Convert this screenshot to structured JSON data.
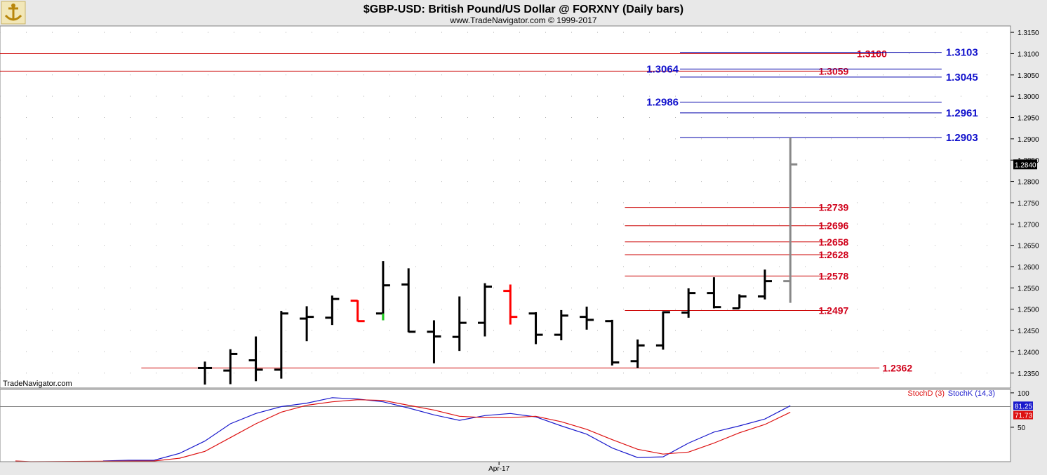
{
  "header": {
    "title": "$GBP-USD:  British Pound/US Dollar @ FORXNY  (Daily bars)",
    "subtitle": "www.TradeNavigator.com © 1999-2017",
    "watermark": "TradeNavigator.com",
    "logo_icon": "anchor-logo-icon"
  },
  "colors": {
    "bar": "#000000",
    "bar_down": "#ff0000",
    "bar_green": "#22cc22",
    "bar_current": "#888888",
    "red_line": "#cc0000",
    "blue_line": "#0000aa",
    "stoch_k": "#1a1acc",
    "stoch_d": "#dd1111",
    "panel_bg": "#ffffff",
    "frame_bg": "#e8e8e8"
  },
  "chart_data": [
    {
      "type": "bar",
      "subtype": "ohlc",
      "title": "$GBP-USD:  British Pound/US Dollar @ FORXNY  (Daily bars)",
      "ylim": [
        1.2315,
        1.3165
      ],
      "yticks": [
        "1.3150",
        "1.3100",
        "1.3050",
        "1.3000",
        "1.2950",
        "1.2900",
        "1.2850",
        "1.2800",
        "1.2750",
        "1.2700",
        "1.2650",
        "1.2600",
        "1.2550",
        "1.2500",
        "1.2450",
        "1.2400",
        "1.2350"
      ],
      "ytick_values": [
        1.315,
        1.31,
        1.305,
        1.3,
        1.295,
        1.29,
        1.285,
        1.28,
        1.275,
        1.27,
        1.265,
        1.26,
        1.255,
        1.25,
        1.245,
        1.24,
        1.235
      ],
      "x_label": "Apr-17",
      "x_label_index": 19,
      "n_slots": 42,
      "last_price": "1.2840",
      "bars": [
        {
          "i": 7,
          "o": 1.2362,
          "h": 1.2377,
          "l": 1.2323,
          "c": 1.2362,
          "color": "bar"
        },
        {
          "i": 8,
          "o": 1.2356,
          "h": 1.2406,
          "l": 1.2324,
          "c": 1.2395,
          "color": "bar"
        },
        {
          "i": 9,
          "o": 1.238,
          "h": 1.2436,
          "l": 1.2331,
          "c": 1.2358,
          "color": "bar"
        },
        {
          "i": 10,
          "o": 1.2358,
          "h": 1.2496,
          "l": 1.2337,
          "c": 1.249,
          "color": "bar"
        },
        {
          "i": 11,
          "o": 1.2478,
          "h": 1.2507,
          "l": 1.2425,
          "c": 1.2482,
          "color": "bar"
        },
        {
          "i": 12,
          "o": 1.248,
          "h": 1.2532,
          "l": 1.2463,
          "c": 1.2524,
          "color": "bar"
        },
        {
          "i": 13,
          "o": 1.252,
          "h": 1.2521,
          "l": 1.2471,
          "c": 1.2472,
          "color": "bar_down"
        },
        {
          "i": 14,
          "o": 1.249,
          "h": 1.2613,
          "l": 1.2474,
          "c": 1.2556,
          "color": "bar",
          "low_tail": "bar_green"
        },
        {
          "i": 15,
          "o": 1.2558,
          "h": 1.2596,
          "l": 1.2446,
          "c": 1.2447,
          "color": "bar"
        },
        {
          "i": 16,
          "o": 1.2447,
          "h": 1.2474,
          "l": 1.2373,
          "c": 1.2436,
          "color": "bar"
        },
        {
          "i": 17,
          "o": 1.2435,
          "h": 1.253,
          "l": 1.2402,
          "c": 1.2468,
          "color": "bar"
        },
        {
          "i": 18,
          "o": 1.2468,
          "h": 1.2561,
          "l": 1.2436,
          "c": 1.2553,
          "color": "bar"
        },
        {
          "i": 19,
          "o": 1.2543,
          "h": 1.2558,
          "l": 1.2464,
          "c": 1.2482,
          "color": "bar_down"
        },
        {
          "i": 20,
          "o": 1.249,
          "h": 1.2493,
          "l": 1.2418,
          "c": 1.244,
          "color": "bar"
        },
        {
          "i": 21,
          "o": 1.244,
          "h": 1.2498,
          "l": 1.2427,
          "c": 1.2485,
          "color": "bar"
        },
        {
          "i": 22,
          "o": 1.2482,
          "h": 1.2506,
          "l": 1.2452,
          "c": 1.2475,
          "color": "bar"
        },
        {
          "i": 23,
          "o": 1.2472,
          "h": 1.2475,
          "l": 1.2368,
          "c": 1.2375,
          "color": "bar"
        },
        {
          "i": 24,
          "o": 1.2378,
          "h": 1.2429,
          "l": 1.2362,
          "c": 1.2415,
          "color": "bar"
        },
        {
          "i": 25,
          "o": 1.2415,
          "h": 1.2495,
          "l": 1.2405,
          "c": 1.2493,
          "color": "bar"
        },
        {
          "i": 26,
          "o": 1.2492,
          "h": 1.2549,
          "l": 1.248,
          "c": 1.2538,
          "color": "bar"
        },
        {
          "i": 27,
          "o": 1.2538,
          "h": 1.2575,
          "l": 1.2502,
          "c": 1.2505,
          "color": "bar"
        },
        {
          "i": 28,
          "o": 1.2502,
          "h": 1.2535,
          "l": 1.2502,
          "c": 1.253,
          "color": "bar"
        },
        {
          "i": 29,
          "o": 1.253,
          "h": 1.2593,
          "l": 1.2523,
          "c": 1.2566,
          "color": "bar"
        },
        {
          "i": 30,
          "o": 1.2566,
          "h": 1.2903,
          "l": 1.2515,
          "c": 1.284,
          "color": "bar_current"
        }
      ],
      "levels_red": [
        {
          "value": 1.2362,
          "label": "1.2362",
          "x_from_index": 5,
          "x_to_index": 33,
          "label_index": 34
        },
        {
          "value": 1.2497,
          "label": "1.2497",
          "x_from_index": 24,
          "x_to_index": 31,
          "label_index": 31
        },
        {
          "value": 1.2578,
          "label": "1.2578",
          "x_from_index": 24,
          "x_to_index": 31,
          "label_index": 31
        },
        {
          "value": 1.2628,
          "label": "1.2628",
          "x_from_index": 24,
          "x_to_index": 31,
          "label_index": 31
        },
        {
          "value": 1.2658,
          "label": "1.2658",
          "x_from_index": 24,
          "x_to_index": 31,
          "label_index": 31
        },
        {
          "value": 1.2696,
          "label": "1.2696",
          "x_from_index": 24,
          "x_to_index": 31,
          "label_index": 31
        },
        {
          "value": 1.2739,
          "label": "1.2739",
          "x_from_index": 24,
          "x_to_index": 31,
          "label_index": 31
        },
        {
          "value": 1.3059,
          "label": "1.3059",
          "x_from_index": 0,
          "x_to_index": 31,
          "label_index": 31
        },
        {
          "value": 1.31,
          "label": "1.3100",
          "x_from_index": 0,
          "x_to_index": 33,
          "label_index": 33
        }
      ],
      "levels_blue": [
        {
          "value": 1.2903,
          "label": "1.2903",
          "x_from_index": 26,
          "x_to_index": 36,
          "label_side": "right"
        },
        {
          "value": 1.2961,
          "label": "1.2961",
          "x_from_index": 26,
          "x_to_index": 36,
          "label_side": "right"
        },
        {
          "value": 1.2986,
          "label": "1.2986",
          "x_from_index": 26,
          "x_to_index": 36,
          "label_side": "left"
        },
        {
          "value": 1.3045,
          "label": "1.3045",
          "x_from_index": 26,
          "x_to_index": 36,
          "label_side": "right"
        },
        {
          "value": 1.3064,
          "label": "1.3064",
          "x_from_index": 26,
          "x_to_index": 36,
          "label_side": "left"
        },
        {
          "value": 1.3103,
          "label": "1.3103",
          "x_from_index": 26,
          "x_to_index": 36,
          "label_side": "right"
        }
      ]
    },
    {
      "type": "line",
      "title": "",
      "ylim": [
        0,
        105
      ],
      "yticks": [
        "100",
        "50"
      ],
      "ytick_values": [
        100,
        50
      ],
      "reference_level": 80,
      "legend": [
        "StochD (3)",
        "StochK (14,3)"
      ],
      "last_values": {
        "k": "81.25",
        "d": "71.73"
      },
      "series": [
        {
          "name": "StochK (14,3)",
          "color_key": "stoch_k",
          "points": [
            [
              3.5,
              1
            ],
            [
              4.5,
              2
            ],
            [
              5.5,
              2
            ],
            [
              6.5,
              12
            ],
            [
              7.5,
              30
            ],
            [
              8.5,
              55
            ],
            [
              9.5,
              70
            ],
            [
              10.5,
              80
            ],
            [
              11.5,
              85
            ],
            [
              12.5,
              93
            ],
            [
              13.5,
              91
            ],
            [
              14.5,
              87
            ],
            [
              15.5,
              78
            ],
            [
              16.5,
              68
            ],
            [
              17.5,
              60
            ],
            [
              18.5,
              67
            ],
            [
              19.5,
              70
            ],
            [
              20.5,
              65
            ],
            [
              21.5,
              52
            ],
            [
              22.5,
              40
            ],
            [
              23.5,
              20
            ],
            [
              24.5,
              6
            ],
            [
              25.5,
              7
            ],
            [
              26.5,
              27
            ],
            [
              27.5,
              43
            ],
            [
              28.5,
              52
            ],
            [
              29.5,
              62
            ],
            [
              30.5,
              81.25
            ]
          ]
        },
        {
          "name": "StochD (3)",
          "color_key": "stoch_d",
          "points": [
            [
              1,
              1
            ],
            [
              2,
              0
            ],
            [
              5.5,
              1
            ],
            [
              6.5,
              5
            ],
            [
              7.5,
              15
            ],
            [
              8.5,
              35
            ],
            [
              9.5,
              55
            ],
            [
              10.5,
              72
            ],
            [
              11.5,
              82
            ],
            [
              12.5,
              87
            ],
            [
              13.5,
              90
            ],
            [
              14.5,
              89
            ],
            [
              15.5,
              82
            ],
            [
              16.5,
              75
            ],
            [
              17.5,
              66
            ],
            [
              18.5,
              64
            ],
            [
              19.5,
              64
            ],
            [
              20.5,
              66
            ],
            [
              21.5,
              58
            ],
            [
              22.5,
              47
            ],
            [
              23.5,
              32
            ],
            [
              24.5,
              18
            ],
            [
              25.5,
              11
            ],
            [
              26.5,
              14
            ],
            [
              27.5,
              27
            ],
            [
              28.5,
              42
            ],
            [
              29.5,
              54
            ],
            [
              30.5,
              71.73
            ]
          ]
        }
      ]
    }
  ]
}
